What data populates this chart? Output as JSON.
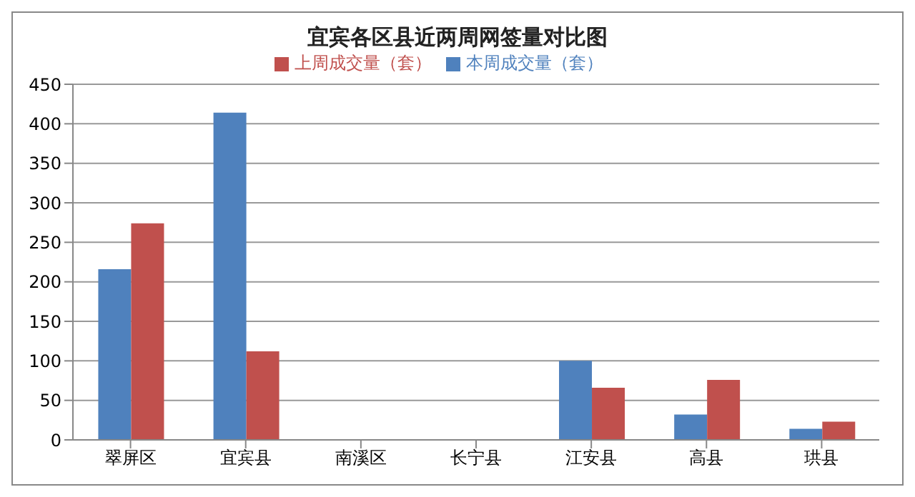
{
  "chart_data": {
    "type": "bar",
    "title": "宜宾各区县近两周网签量对比图",
    "categories": [
      "翠屏区",
      "宜宾县",
      "南溪区",
      "长宁县",
      "江安县",
      "高县",
      "珙县"
    ],
    "series": [
      {
        "name": "本周成交量（套）",
        "color": "#4f81bd",
        "values": [
          216,
          414,
          0,
          0,
          100,
          32,
          14
        ]
      },
      {
        "name": "上周成交量（套）",
        "color": "#c0504d",
        "values": [
          274,
          112,
          0,
          0,
          66,
          76,
          23
        ]
      }
    ],
    "ylim": [
      0,
      450
    ],
    "yticks": [
      0,
      50,
      100,
      150,
      200,
      250,
      300,
      350,
      400,
      450
    ],
    "grid": "y",
    "legend": "top"
  }
}
